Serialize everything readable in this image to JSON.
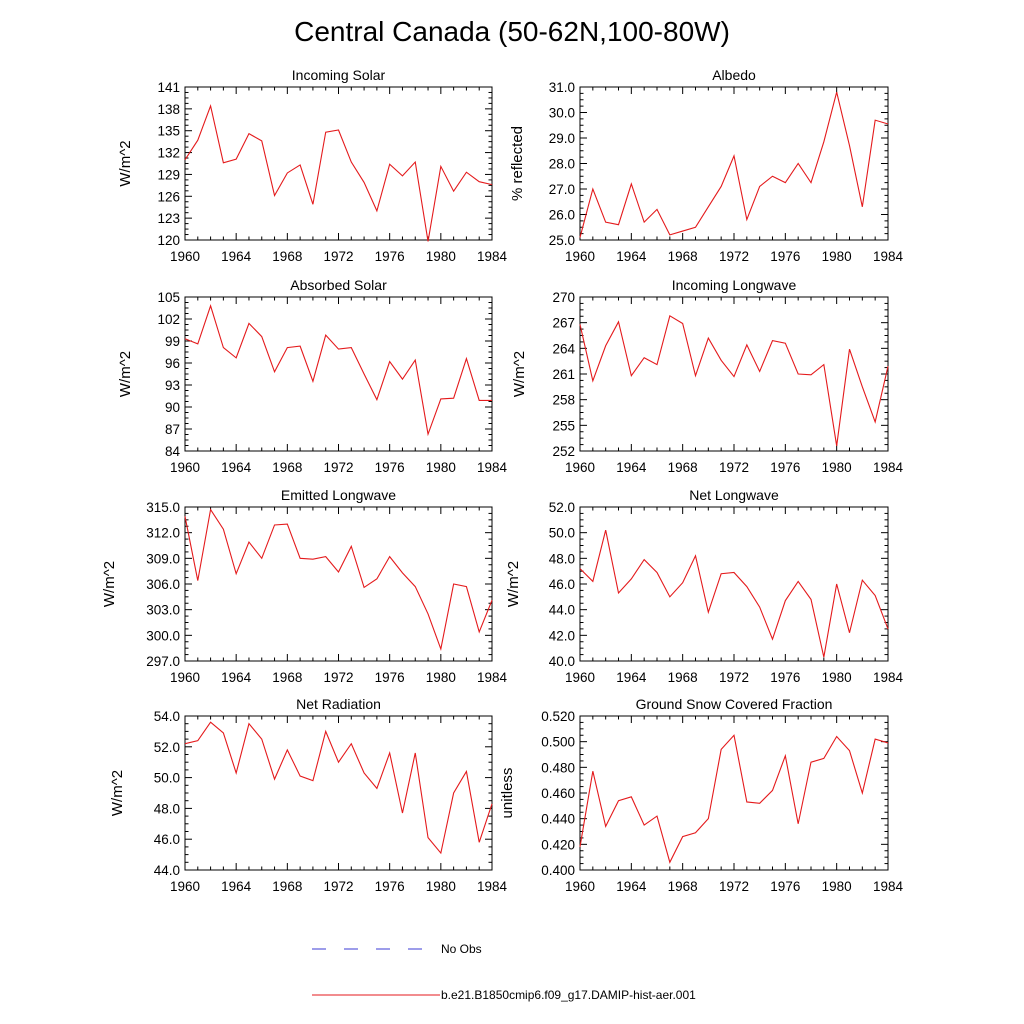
{
  "figure": {
    "title": "Central Canada (50-62N,100-80W)",
    "series_color": "#e41a1c",
    "obs_color": "#3b3bd6"
  },
  "legend": {
    "obs_label": "No Obs",
    "model_label": "b.e21.B1850cmip6.f09_g17.DAMIP-hist-aer.001"
  },
  "chart_data": [
    {
      "type": "line",
      "title": "Incoming Solar",
      "ylabel": "W/m^2",
      "ylim": [
        120,
        141
      ],
      "yticks": [
        120,
        123,
        126,
        129,
        132,
        135,
        138,
        141
      ],
      "ytick_labels": [
        "120",
        "123",
        "126",
        "129",
        "132",
        "135",
        "138",
        "141"
      ],
      "xlim": [
        1960,
        1984
      ],
      "xticks": [
        1960,
        1964,
        1968,
        1972,
        1976,
        1980,
        1984
      ],
      "x": [
        1960,
        1961,
        1962,
        1963,
        1964,
        1965,
        1966,
        1967,
        1968,
        1969,
        1970,
        1971,
        1972,
        1973,
        1974,
        1975,
        1976,
        1977,
        1978,
        1979,
        1980,
        1981,
        1982,
        1983,
        1984
      ],
      "series": [
        {
          "name": "b.e21.B1850cmip6.f09_g17.DAMIP-hist-aer.001",
          "values": [
            131.0,
            133.7,
            138.4,
            130.6,
            131.1,
            134.6,
            133.6,
            126.1,
            129.2,
            130.3,
            124.9,
            134.8,
            135.1,
            130.7,
            127.9,
            124.0,
            130.4,
            128.8,
            130.7,
            119.8,
            130.1,
            126.7,
            129.3,
            128.0,
            127.6
          ]
        }
      ]
    },
    {
      "type": "line",
      "title": "Albedo",
      "ylabel": "% reflected",
      "ylim": [
        25.0,
        31.0
      ],
      "yticks": [
        25,
        26,
        27,
        28,
        29,
        30,
        31
      ],
      "ytick_labels": [
        "25.0",
        "26.0",
        "27.0",
        "28.0",
        "29.0",
        "30.0",
        "31.0"
      ],
      "xlim": [
        1960,
        1984
      ],
      "xticks": [
        1960,
        1964,
        1968,
        1972,
        1976,
        1980,
        1984
      ],
      "x": [
        1960,
        1961,
        1962,
        1963,
        1964,
        1965,
        1966,
        1967,
        1968,
        1969,
        1970,
        1971,
        1972,
        1973,
        1974,
        1975,
        1976,
        1977,
        1978,
        1979,
        1980,
        1981,
        1982,
        1983,
        1984
      ],
      "series": [
        {
          "name": "b.e21.B1850cmip6.f09_g17.DAMIP-hist-aer.001",
          "values": [
            25.1,
            27.0,
            25.7,
            25.6,
            27.2,
            25.7,
            26.2,
            25.2,
            25.35,
            25.5,
            26.3,
            27.1,
            28.3,
            25.8,
            27.1,
            27.5,
            27.25,
            28.0,
            27.25,
            28.85,
            30.8,
            28.7,
            26.3,
            29.7,
            29.55
          ]
        }
      ]
    },
    {
      "type": "line",
      "title": "Absorbed Solar",
      "ylabel": "W/m^2",
      "ylim": [
        84,
        105
      ],
      "yticks": [
        84,
        87,
        90,
        93,
        96,
        99,
        102,
        105
      ],
      "ytick_labels": [
        "84",
        "87",
        "90",
        "93",
        "96",
        "99",
        "102",
        "105"
      ],
      "xlim": [
        1960,
        1984
      ],
      "xticks": [
        1960,
        1964,
        1968,
        1972,
        1976,
        1980,
        1984
      ],
      "x": [
        1960,
        1961,
        1962,
        1963,
        1964,
        1965,
        1966,
        1967,
        1968,
        1969,
        1970,
        1971,
        1972,
        1973,
        1974,
        1975,
        1976,
        1977,
        1978,
        1979,
        1980,
        1981,
        1982,
        1983,
        1984
      ],
      "series": [
        {
          "name": "b.e21.B1850cmip6.f09_g17.DAMIP-hist-aer.001",
          "values": [
            99.3,
            98.6,
            103.8,
            98.1,
            96.7,
            101.4,
            99.6,
            94.8,
            98.1,
            98.3,
            93.5,
            99.8,
            97.9,
            98.1,
            94.5,
            91.0,
            96.2,
            93.8,
            96.4,
            86.3,
            91.1,
            91.2,
            96.6,
            90.9,
            90.9
          ]
        }
      ]
    },
    {
      "type": "line",
      "title": "Incoming Longwave",
      "ylabel": "W/m^2",
      "ylim": [
        252,
        270
      ],
      "yticks": [
        252,
        255,
        258,
        261,
        264,
        267,
        270
      ],
      "ytick_labels": [
        "252",
        "255",
        "258",
        "261",
        "264",
        "267",
        "270"
      ],
      "xlim": [
        1960,
        1984
      ],
      "xticks": [
        1960,
        1964,
        1968,
        1972,
        1976,
        1980,
        1984
      ],
      "x": [
        1960,
        1961,
        1962,
        1963,
        1964,
        1965,
        1966,
        1967,
        1968,
        1969,
        1970,
        1971,
        1972,
        1973,
        1974,
        1975,
        1976,
        1977,
        1978,
        1979,
        1980,
        1981,
        1982,
        1983,
        1984
      ],
      "series": [
        {
          "name": "b.e21.B1850cmip6.f09_g17.DAMIP-hist-aer.001",
          "values": [
            266.8,
            260.2,
            264.3,
            267.1,
            260.8,
            262.9,
            262.1,
            267.8,
            266.9,
            260.8,
            265.2,
            262.6,
            260.7,
            264.4,
            261.3,
            264.9,
            264.6,
            261.0,
            260.9,
            262.1,
            252.6,
            263.9,
            259.5,
            255.4,
            261.9
          ]
        }
      ]
    },
    {
      "type": "line",
      "title": "Emitted Longwave",
      "ylabel": "W/m^2",
      "ylim": [
        297.0,
        315.0
      ],
      "yticks": [
        297,
        300,
        303,
        306,
        309,
        312,
        315
      ],
      "ytick_labels": [
        "297.0",
        "300.0",
        "303.0",
        "306.0",
        "309.0",
        "312.0",
        "315.0"
      ],
      "xlim": [
        1960,
        1984
      ],
      "xticks": [
        1960,
        1964,
        1968,
        1972,
        1976,
        1980,
        1984
      ],
      "x": [
        1960,
        1961,
        1962,
        1963,
        1964,
        1965,
        1966,
        1967,
        1968,
        1969,
        1970,
        1971,
        1972,
        1973,
        1974,
        1975,
        1976,
        1977,
        1978,
        1979,
        1980,
        1981,
        1982,
        1983,
        1984
      ],
      "series": [
        {
          "name": "b.e21.B1850cmip6.f09_g17.DAMIP-hist-aer.001",
          "values": [
            313.9,
            306.4,
            314.7,
            312.4,
            307.2,
            310.9,
            309.0,
            312.9,
            313.0,
            309.0,
            308.9,
            309.2,
            307.4,
            310.4,
            305.6,
            306.6,
            309.2,
            307.3,
            305.7,
            302.5,
            298.4,
            306.0,
            305.7,
            300.4,
            304.1
          ]
        }
      ]
    },
    {
      "type": "line",
      "title": "Net Longwave",
      "ylabel": "W/m^2",
      "ylim": [
        40.0,
        52.0
      ],
      "yticks": [
        40,
        42,
        44,
        46,
        48,
        50,
        52
      ],
      "ytick_labels": [
        "40.0",
        "42.0",
        "44.0",
        "46.0",
        "48.0",
        "50.0",
        "52.0"
      ],
      "xlim": [
        1960,
        1984
      ],
      "xticks": [
        1960,
        1964,
        1968,
        1972,
        1976,
        1980,
        1984
      ],
      "x": [
        1960,
        1961,
        1962,
        1963,
        1964,
        1965,
        1966,
        1967,
        1968,
        1969,
        1970,
        1971,
        1972,
        1973,
        1974,
        1975,
        1976,
        1977,
        1978,
        1979,
        1980,
        1981,
        1982,
        1983,
        1984
      ],
      "series": [
        {
          "name": "b.e21.B1850cmip6.f09_g17.DAMIP-hist-aer.001",
          "values": [
            47.2,
            46.2,
            50.2,
            45.3,
            46.4,
            47.9,
            46.9,
            45.0,
            46.1,
            48.2,
            43.8,
            46.8,
            46.9,
            45.8,
            44.2,
            41.7,
            44.7,
            46.2,
            44.8,
            40.3,
            46.0,
            42.2,
            46.3,
            45.1,
            42.5
          ]
        }
      ]
    },
    {
      "type": "line",
      "title": "Net Radiation",
      "ylabel": "W/m^2",
      "ylim": [
        44.0,
        54.0
      ],
      "yticks": [
        44,
        46,
        48,
        50,
        52,
        54
      ],
      "ytick_labels": [
        "44.0",
        "46.0",
        "48.0",
        "50.0",
        "52.0",
        "54.0"
      ],
      "xlim": [
        1960,
        1984
      ],
      "xticks": [
        1960,
        1964,
        1968,
        1972,
        1976,
        1980,
        1984
      ],
      "x": [
        1960,
        1961,
        1962,
        1963,
        1964,
        1965,
        1966,
        1967,
        1968,
        1969,
        1970,
        1971,
        1972,
        1973,
        1974,
        1975,
        1976,
        1977,
        1978,
        1979,
        1980,
        1981,
        1982,
        1983,
        1984
      ],
      "series": [
        {
          "name": "b.e21.B1850cmip6.f09_g17.DAMIP-hist-aer.001",
          "values": [
            52.2,
            52.4,
            53.6,
            52.9,
            50.3,
            53.5,
            52.5,
            49.9,
            51.8,
            50.1,
            49.8,
            53.0,
            51.0,
            52.2,
            50.3,
            49.3,
            51.6,
            47.7,
            51.6,
            46.1,
            45.1,
            49.0,
            50.4,
            45.8,
            48.3
          ]
        }
      ]
    },
    {
      "type": "line",
      "title": "Ground Snow Covered Fraction",
      "ylabel": "unitless",
      "ylim": [
        0.4,
        0.52
      ],
      "yticks": [
        0.4,
        0.42,
        0.44,
        0.46,
        0.48,
        0.5,
        0.52
      ],
      "ytick_labels": [
        "0.400",
        "0.420",
        "0.440",
        "0.460",
        "0.480",
        "0.500",
        "0.520"
      ],
      "xlim": [
        1960,
        1984
      ],
      "xticks": [
        1960,
        1964,
        1968,
        1972,
        1976,
        1980,
        1984
      ],
      "x": [
        1960,
        1961,
        1962,
        1963,
        1964,
        1965,
        1966,
        1967,
        1968,
        1969,
        1970,
        1971,
        1972,
        1973,
        1974,
        1975,
        1976,
        1977,
        1978,
        1979,
        1980,
        1981,
        1982,
        1983,
        1984
      ],
      "series": [
        {
          "name": "b.e21.B1850cmip6.f09_g17.DAMIP-hist-aer.001",
          "values": [
            0.418,
            0.477,
            0.434,
            0.454,
            0.457,
            0.435,
            0.442,
            0.406,
            0.426,
            0.429,
            0.44,
            0.494,
            0.505,
            0.453,
            0.452,
            0.462,
            0.489,
            0.436,
            0.484,
            0.487,
            0.504,
            0.493,
            0.46,
            0.502,
            0.499
          ]
        }
      ]
    }
  ]
}
